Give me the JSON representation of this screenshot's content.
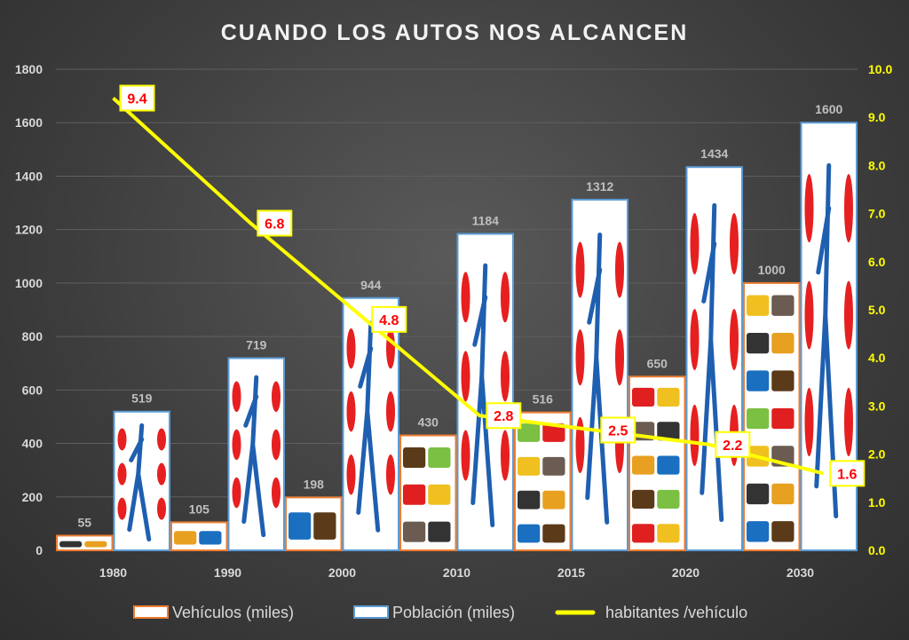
{
  "chart_data": {
    "type": "bar",
    "title": "CUANDO LOS AUTOS NOS ALCANCEN",
    "categories": [
      "1980",
      "1990",
      "2000",
      "2010",
      "2015",
      "2020",
      "2030"
    ],
    "series": [
      {
        "name": "Vehículos (miles)",
        "type": "bar",
        "axis": "left",
        "values": [
          55,
          105,
          198,
          430,
          516,
          650,
          1000
        ]
      },
      {
        "name": "Población (miles)",
        "type": "bar",
        "axis": "left",
        "values": [
          519,
          719,
          944,
          1184,
          1312,
          1434,
          1600
        ]
      },
      {
        "name": "habitantes /vehículo",
        "type": "line",
        "axis": "right",
        "values": [
          9.4,
          6.8,
          4.8,
          2.8,
          2.5,
          2.2,
          1.6
        ]
      }
    ],
    "ylim_left": [
      0,
      1800
    ],
    "yticks_left": [
      "0",
      "200",
      "400",
      "600",
      "800",
      "1000",
      "1200",
      "1400",
      "1600",
      "1800"
    ],
    "ylim_right": [
      0,
      10
    ],
    "yticks_right": [
      "0.0",
      "1.0",
      "2.0",
      "3.0",
      "4.0",
      "5.0",
      "6.0",
      "7.0",
      "8.0",
      "9.0",
      "10.0"
    ],
    "grid": true,
    "legend": "bottom",
    "colors": {
      "vehicle_border": "#ed7d31",
      "population_border": "#5b9bd5",
      "line": "#ffff00",
      "line_label": "#ff0000",
      "grid": "#5f5f5f"
    }
  }
}
